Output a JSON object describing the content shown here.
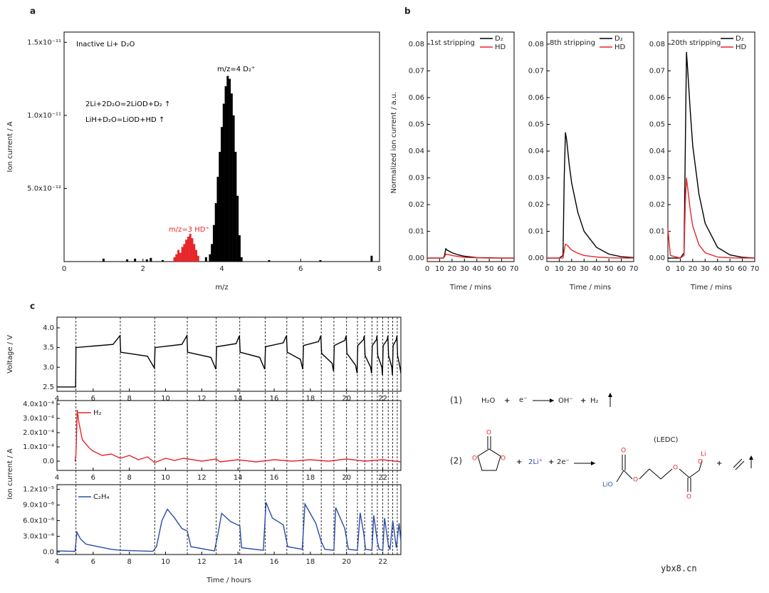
{
  "panel_labels": [
    "a",
    "b",
    "c"
  ],
  "chart_data": [
    {
      "type": "stem",
      "xlabel": "m/z",
      "ylabel": "Ion current / A",
      "annotations": [
        {
          "text": "Inactive Li+ D₂O",
          "color": "#000000"
        },
        {
          "text": "m/z=4 D₂⁺",
          "color": "#000000"
        },
        {
          "text": "2Li+2D₂O=2LiOD+D₂ ↑",
          "color": "#000000"
        },
        {
          "text": "LiH+D₂O=LiOD+HD ↑",
          "color": "#000000"
        },
        {
          "text": "m/z=3 HD⁺",
          "color": "#e8262a"
        }
      ],
      "xlim": [
        0,
        8
      ],
      "xticks": [
        0,
        2,
        4,
        6,
        8
      ],
      "ylim": [
        0,
        1.57e-11
      ],
      "yticks": [
        {
          "value": 5e-12,
          "label": "5.0x10⁻¹²"
        },
        {
          "value": 1e-11,
          "label": "1.0x10⁻¹¹"
        },
        {
          "value": 1.5e-11,
          "label": "1.5x10⁻¹¹"
        }
      ],
      "series": [
        {
          "color": "#000000",
          "x": [
            1.0,
            1.6,
            1.8,
            2.1,
            2.2,
            2.5,
            3.6,
            3.7,
            3.75,
            3.8,
            3.85,
            3.9,
            3.95,
            4.0,
            4.05,
            4.1,
            4.15,
            4.2,
            4.25,
            4.3,
            4.35,
            4.4,
            4.45,
            4.5,
            5.2,
            6.5,
            7.8
          ],
          "values": [
            2e-13,
            1.5e-13,
            2e-13,
            1.5e-13,
            2.5e-13,
            1e-13,
            3e-13,
            5e-13,
            1.2e-12,
            2.5e-12,
            4e-12,
            5.8e-12,
            7.5e-12,
            9.2e-12,
            1.08e-11,
            1.2e-11,
            1.27e-11,
            1.25e-11,
            1.15e-11,
            1e-11,
            7.5e-12,
            4.5e-12,
            1.8e-12,
            3e-13,
            1e-13,
            1e-13,
            4e-13
          ]
        },
        {
          "color": "#e8262a",
          "x": [
            2.8,
            2.85,
            2.9,
            2.95,
            3.0,
            3.05,
            3.1,
            3.15,
            3.2,
            3.25,
            3.3,
            3.35,
            3.4
          ],
          "values": [
            3e-13,
            5e-13,
            8e-13,
            6e-13,
            1e-12,
            1.2e-12,
            1.5e-12,
            1.7e-12,
            1.9e-12,
            1.6e-12,
            1.2e-12,
            8e-13,
            4e-13
          ]
        }
      ]
    },
    {
      "type": "line",
      "title": "1st stripping",
      "xlabel": "Time / mins",
      "ylabel": "Normalized ion current / a.u.",
      "xlim": [
        0,
        70
      ],
      "xticks": [
        0,
        10,
        20,
        30,
        40,
        50,
        60,
        70
      ],
      "ylim": [
        -0.0013,
        0.0845
      ],
      "yticks": [
        {
          "value": 0,
          "label": "0.00"
        },
        0.01,
        0.02,
        0.03,
        0.04,
        0.05,
        0.06,
        0.07,
        0.08
      ],
      "x": [
        0,
        5,
        10,
        13,
        14,
        15,
        16,
        18,
        20,
        25,
        30,
        40,
        50,
        60,
        70
      ],
      "series": [
        {
          "name": "D₂",
          "color": "#000000",
          "values": [
            0,
            0,
            0,
            0,
            0.001,
            0.0035,
            0.003,
            0.0025,
            0.002,
            0.0012,
            0.0007,
            0.0002,
            0.0001,
            0,
            0
          ]
        },
        {
          "name": "HD",
          "color": "#e8262a",
          "values": [
            0,
            0,
            0,
            0,
            0.0005,
            0.0015,
            0.0014,
            0.0012,
            0.001,
            0.0006,
            0.0003,
            0.0001,
            0,
            0,
            0
          ]
        }
      ]
    },
    {
      "type": "line",
      "title": "8th stripping",
      "xlabel": "Time / mins",
      "xlim": [
        0,
        70
      ],
      "xticks": [
        0,
        10,
        20,
        30,
        40,
        50,
        60,
        70
      ],
      "ylim": [
        -0.0013,
        0.0845
      ],
      "yticks": [
        {
          "value": 0,
          "label": "0.00"
        },
        0.01,
        0.02,
        0.03,
        0.04,
        0.05,
        0.06,
        0.07,
        0.08
      ],
      "x": [
        0,
        5,
        10,
        13,
        14,
        15,
        16,
        18,
        20,
        25,
        30,
        40,
        50,
        60,
        70
      ],
      "series": [
        {
          "name": "D₂",
          "color": "#000000",
          "values": [
            0,
            0,
            0,
            0.001,
            0.03,
            0.047,
            0.044,
            0.035,
            0.028,
            0.017,
            0.01,
            0.004,
            0.0015,
            0.0005,
            0.0002
          ]
        },
        {
          "name": "HD",
          "color": "#e8262a",
          "values": [
            0,
            0,
            0,
            0,
            0.003,
            0.0052,
            0.005,
            0.004,
            0.003,
            0.0018,
            0.001,
            0.0004,
            0.0001,
            0,
            0
          ]
        }
      ]
    },
    {
      "type": "line",
      "title": "20th stripping",
      "xlabel": "Time / mins",
      "xlim": [
        0,
        70
      ],
      "xticks": [
        0,
        10,
        20,
        30,
        40,
        50,
        60,
        70
      ],
      "ylim": [
        -0.0013,
        0.0845
      ],
      "yticks": [
        {
          "value": 0,
          "label": "0.00"
        },
        0.01,
        0.02,
        0.03,
        0.04,
        0.05,
        0.06,
        0.07,
        0.08
      ],
      "x": [
        0,
        2,
        10,
        13,
        14,
        15,
        16,
        18,
        20,
        25,
        30,
        40,
        50,
        60,
        70
      ],
      "series": [
        {
          "name": "D₂",
          "color": "#000000",
          "values": [
            0,
            0,
            0,
            0.002,
            0.04,
            0.077,
            0.07,
            0.055,
            0.042,
            0.024,
            0.013,
            0.004,
            0.0012,
            0.0003,
            0
          ]
        },
        {
          "name": "HD",
          "color": "#e8262a",
          "values": [
            0.011,
            0.001,
            0,
            0.001,
            0.02,
            0.03,
            0.026,
            0.018,
            0.012,
            0.005,
            0.002,
            0.0004,
            0.0001,
            0,
            0
          ]
        }
      ]
    },
    {
      "type": "line",
      "ylabel": "Voltage / V",
      "xlim": [
        4,
        23
      ],
      "xticks": [
        4,
        6,
        8,
        10,
        12,
        14,
        16,
        18,
        20,
        22
      ],
      "ylim": [
        2.39,
        4.27
      ],
      "yticks": [
        2.5,
        {
          "value": 3,
          "label": "3.0"
        },
        3.5,
        {
          "value": 4,
          "label": "4.0"
        }
      ],
      "markers": [
        5.05,
        7.5,
        9.4,
        11.2,
        12.8,
        14.1,
        15.5,
        16.7,
        17.6,
        18.6,
        19.3,
        20.0,
        20.6,
        21.0,
        21.4,
        21.7,
        22.0,
        22.3,
        22.55,
        22.8
      ],
      "x": [
        4,
        5.03,
        5.05,
        7.1,
        7.48,
        7.52,
        9.0,
        9.38,
        9.42,
        10.9,
        11.18,
        11.22,
        12.5,
        12.78,
        12.82,
        13.9,
        14.08,
        14.12,
        15.2,
        15.48,
        15.52,
        16.5,
        16.68,
        16.72,
        17.45,
        17.58,
        17.62,
        18.45,
        18.58,
        18.62,
        19.2,
        19.28,
        19.32,
        19.9,
        19.98,
        20.02,
        20.5,
        20.58,
        20.62,
        20.93,
        20.98,
        21.02,
        21.33,
        21.38,
        21.42,
        21.65,
        21.68,
        21.72,
        21.95,
        21.98,
        22.02,
        22.25,
        22.28,
        22.32,
        22.5,
        22.53,
        22.57,
        22.75,
        22.78,
        22.82,
        22.95,
        23
      ],
      "series": [
        {
          "color": "#000000",
          "values": [
            2.5,
            2.5,
            3.5,
            3.58,
            3.8,
            3.38,
            3.28,
            2.98,
            3.5,
            3.58,
            3.8,
            3.38,
            3.25,
            2.95,
            3.52,
            3.6,
            3.8,
            3.38,
            3.25,
            2.95,
            3.52,
            3.62,
            3.8,
            3.38,
            3.2,
            2.95,
            3.55,
            3.65,
            3.8,
            3.35,
            3.1,
            2.9,
            3.55,
            3.68,
            3.8,
            3.35,
            3.05,
            2.85,
            3.55,
            3.7,
            3.8,
            3.3,
            3.0,
            2.85,
            3.55,
            3.7,
            3.8,
            3.3,
            3.0,
            2.8,
            3.55,
            3.7,
            3.8,
            3.3,
            3.0,
            2.8,
            3.55,
            3.7,
            3.8,
            3.3,
            3.0,
            2.85
          ]
        }
      ]
    },
    {
      "type": "line",
      "ylabel": "Ion current / A",
      "xlim": [
        4,
        23
      ],
      "xticks": [
        4,
        6,
        8,
        10,
        12,
        14,
        16,
        18,
        20,
        22
      ],
      "ylim": [
        -6.5e-05,
        0.000425
      ],
      "yticks": [
        {
          "value": 0,
          "label": "0.0"
        },
        {
          "value": 0.0001,
          "label": "1.0x10⁻⁴"
        },
        {
          "value": 0.0002,
          "label": "2.0x10⁻⁴"
        },
        {
          "value": 0.0003,
          "label": "3.0x10⁻⁴"
        },
        {
          "value": 0.0004,
          "label": "4.0x10⁻⁴"
        }
      ],
      "x": [
        5.0,
        5.05,
        5.12,
        5.2,
        5.4,
        5.8,
        6.0,
        6.5,
        7.0,
        7.5,
        8.0,
        8.5,
        9.0,
        9.4,
        10.0,
        10.5,
        11.0,
        12.0,
        12.8,
        13.0,
        14.0,
        15.0,
        16.0,
        17.0,
        18.0,
        19.0,
        20.0,
        21.0,
        22.0,
        23.0
      ],
      "series": [
        {
          "name": "H₂",
          "color": "#e8262a",
          "values": [
            0,
            5e-05,
            0.00036,
            0.00028,
            0.00015,
            9e-05,
            7e-05,
            4e-05,
            5e-05,
            2e-05,
            4e-05,
            1e-05,
            3e-05,
            -1e-05,
            2e-05,
            5e-06,
            2e-05,
            0,
            1.5e-05,
            -5e-06,
            1e-05,
            -5e-06,
            1e-05,
            0,
            1e-05,
            0,
            1.5e-05,
            0,
            1e-05,
            -5e-06
          ]
        }
      ]
    },
    {
      "type": "line",
      "xlabel": "Time / hours",
      "xlim": [
        4,
        23
      ],
      "xticks": [
        4,
        6,
        8,
        10,
        12,
        14,
        16,
        18,
        20,
        22
      ],
      "ylim": [
        -5e-07,
        1.29e-05
      ],
      "yticks": [
        {
          "value": 0,
          "label": "0.0"
        },
        {
          "value": 3e-06,
          "label": "3.0x10⁻⁶"
        },
        {
          "value": 6e-06,
          "label": "6.0x10⁻⁶"
        },
        {
          "value": 9e-06,
          "label": "9.0x10⁻⁶"
        },
        {
          "value": 1.2e-05,
          "label": "1.2x10⁻⁵"
        }
      ],
      "x": [
        4,
        5.0,
        5.1,
        5.3,
        5.6,
        6,
        7,
        7.5,
        9.3,
        9.5,
        9.8,
        10.1,
        10.5,
        10.9,
        11.2,
        11.4,
        12.7,
        12.9,
        13.1,
        13.6,
        14.1,
        14.2,
        15.4,
        15.55,
        15.9,
        16.5,
        16.75,
        17.55,
        17.7,
        18.3,
        18.6,
        18.8,
        19.3,
        19.4,
        19.9,
        20.1,
        20.6,
        20.75,
        20.95,
        21.05,
        21.4,
        21.5,
        21.7,
        21.8,
        22.0,
        22.1,
        22.3,
        22.4,
        22.55,
        22.75,
        22.9,
        23
      ],
      "series": [
        {
          "name": "C₂H₄",
          "color": "#2b4ba8",
          "values": [
            2e-07,
            1e-07,
            3.8e-06,
            2.5e-06,
            1.5e-06,
            1.2e-06,
            5e-07,
            3e-07,
            1e-07,
            1e-06,
            6e-06,
            8.2e-06,
            6.5e-06,
            4.5e-06,
            4e-06,
            1e-06,
            2e-07,
            3.5e-06,
            7.4e-06,
            5.8e-06,
            5e-06,
            8e-07,
            3e-07,
            9.5e-06,
            6.5e-06,
            5.2e-06,
            1e-06,
            5e-07,
            9.2e-06,
            5.5e-06,
            2e-06,
            5e-07,
            3e-07,
            8.5e-06,
            4.5e-06,
            5e-07,
            3e-07,
            7.5e-06,
            3.5e-06,
            5e-07,
            3e-07,
            7e-06,
            2e-06,
            5e-07,
            3e-07,
            6.5e-06,
            1.5e-06,
            4e-07,
            6e-06,
            8e-07,
            5.5e-06,
            2e-06
          ]
        }
      ]
    }
  ],
  "reactions": [
    {
      "number": "(1)",
      "parts": [
        "H₂O",
        "+",
        "e⁻",
        "OH⁻",
        "+",
        "H₂"
      ]
    },
    {
      "number": "(2)",
      "parts": [
        "+",
        "2Li⁺",
        "+",
        "2e⁻",
        "(LEDC)",
        "+"
      ],
      "atoms": [
        "O",
        "O",
        "O",
        "LiO",
        "O",
        "O",
        "O",
        "O",
        "Li",
        "O"
      ]
    }
  ],
  "watermark": "ybx8.cn"
}
